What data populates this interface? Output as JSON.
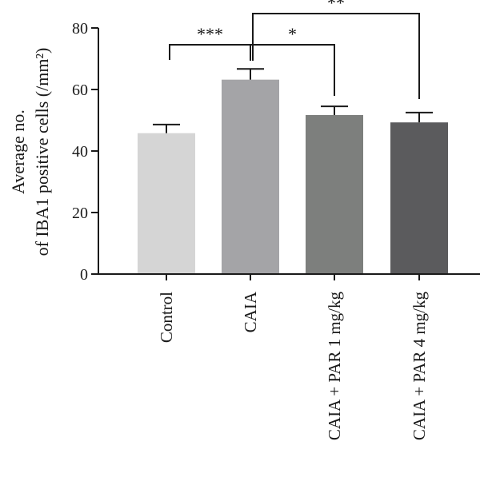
{
  "chart_data": {
    "type": "bar",
    "categories": [
      "Control",
      "CAIA",
      "CAIA + PAR 1 mg/kg",
      "CAIA + PAR 4 mg/kg"
    ],
    "values": [
      45.8,
      63.2,
      51.7,
      49.3
    ],
    "errors": [
      2.8,
      3.5,
      2.8,
      3.2
    ],
    "colors": [
      "#d5d5d5",
      "#a4a4a7",
      "#7d7f7d",
      "#5b5b5d"
    ],
    "ylabel_line1": "Average no.",
    "ylabel_line2": "of IBA1 positive cells (/mm²)",
    "ylim": [
      0,
      80
    ],
    "yticks": [
      0,
      20,
      40,
      60,
      80
    ],
    "significance": [
      {
        "from": 0,
        "to": 1,
        "label": "***"
      },
      {
        "from": 1,
        "to": 2,
        "label": "*"
      },
      {
        "from": 1,
        "to": 3,
        "label": "**"
      }
    ],
    "grid": false
  }
}
